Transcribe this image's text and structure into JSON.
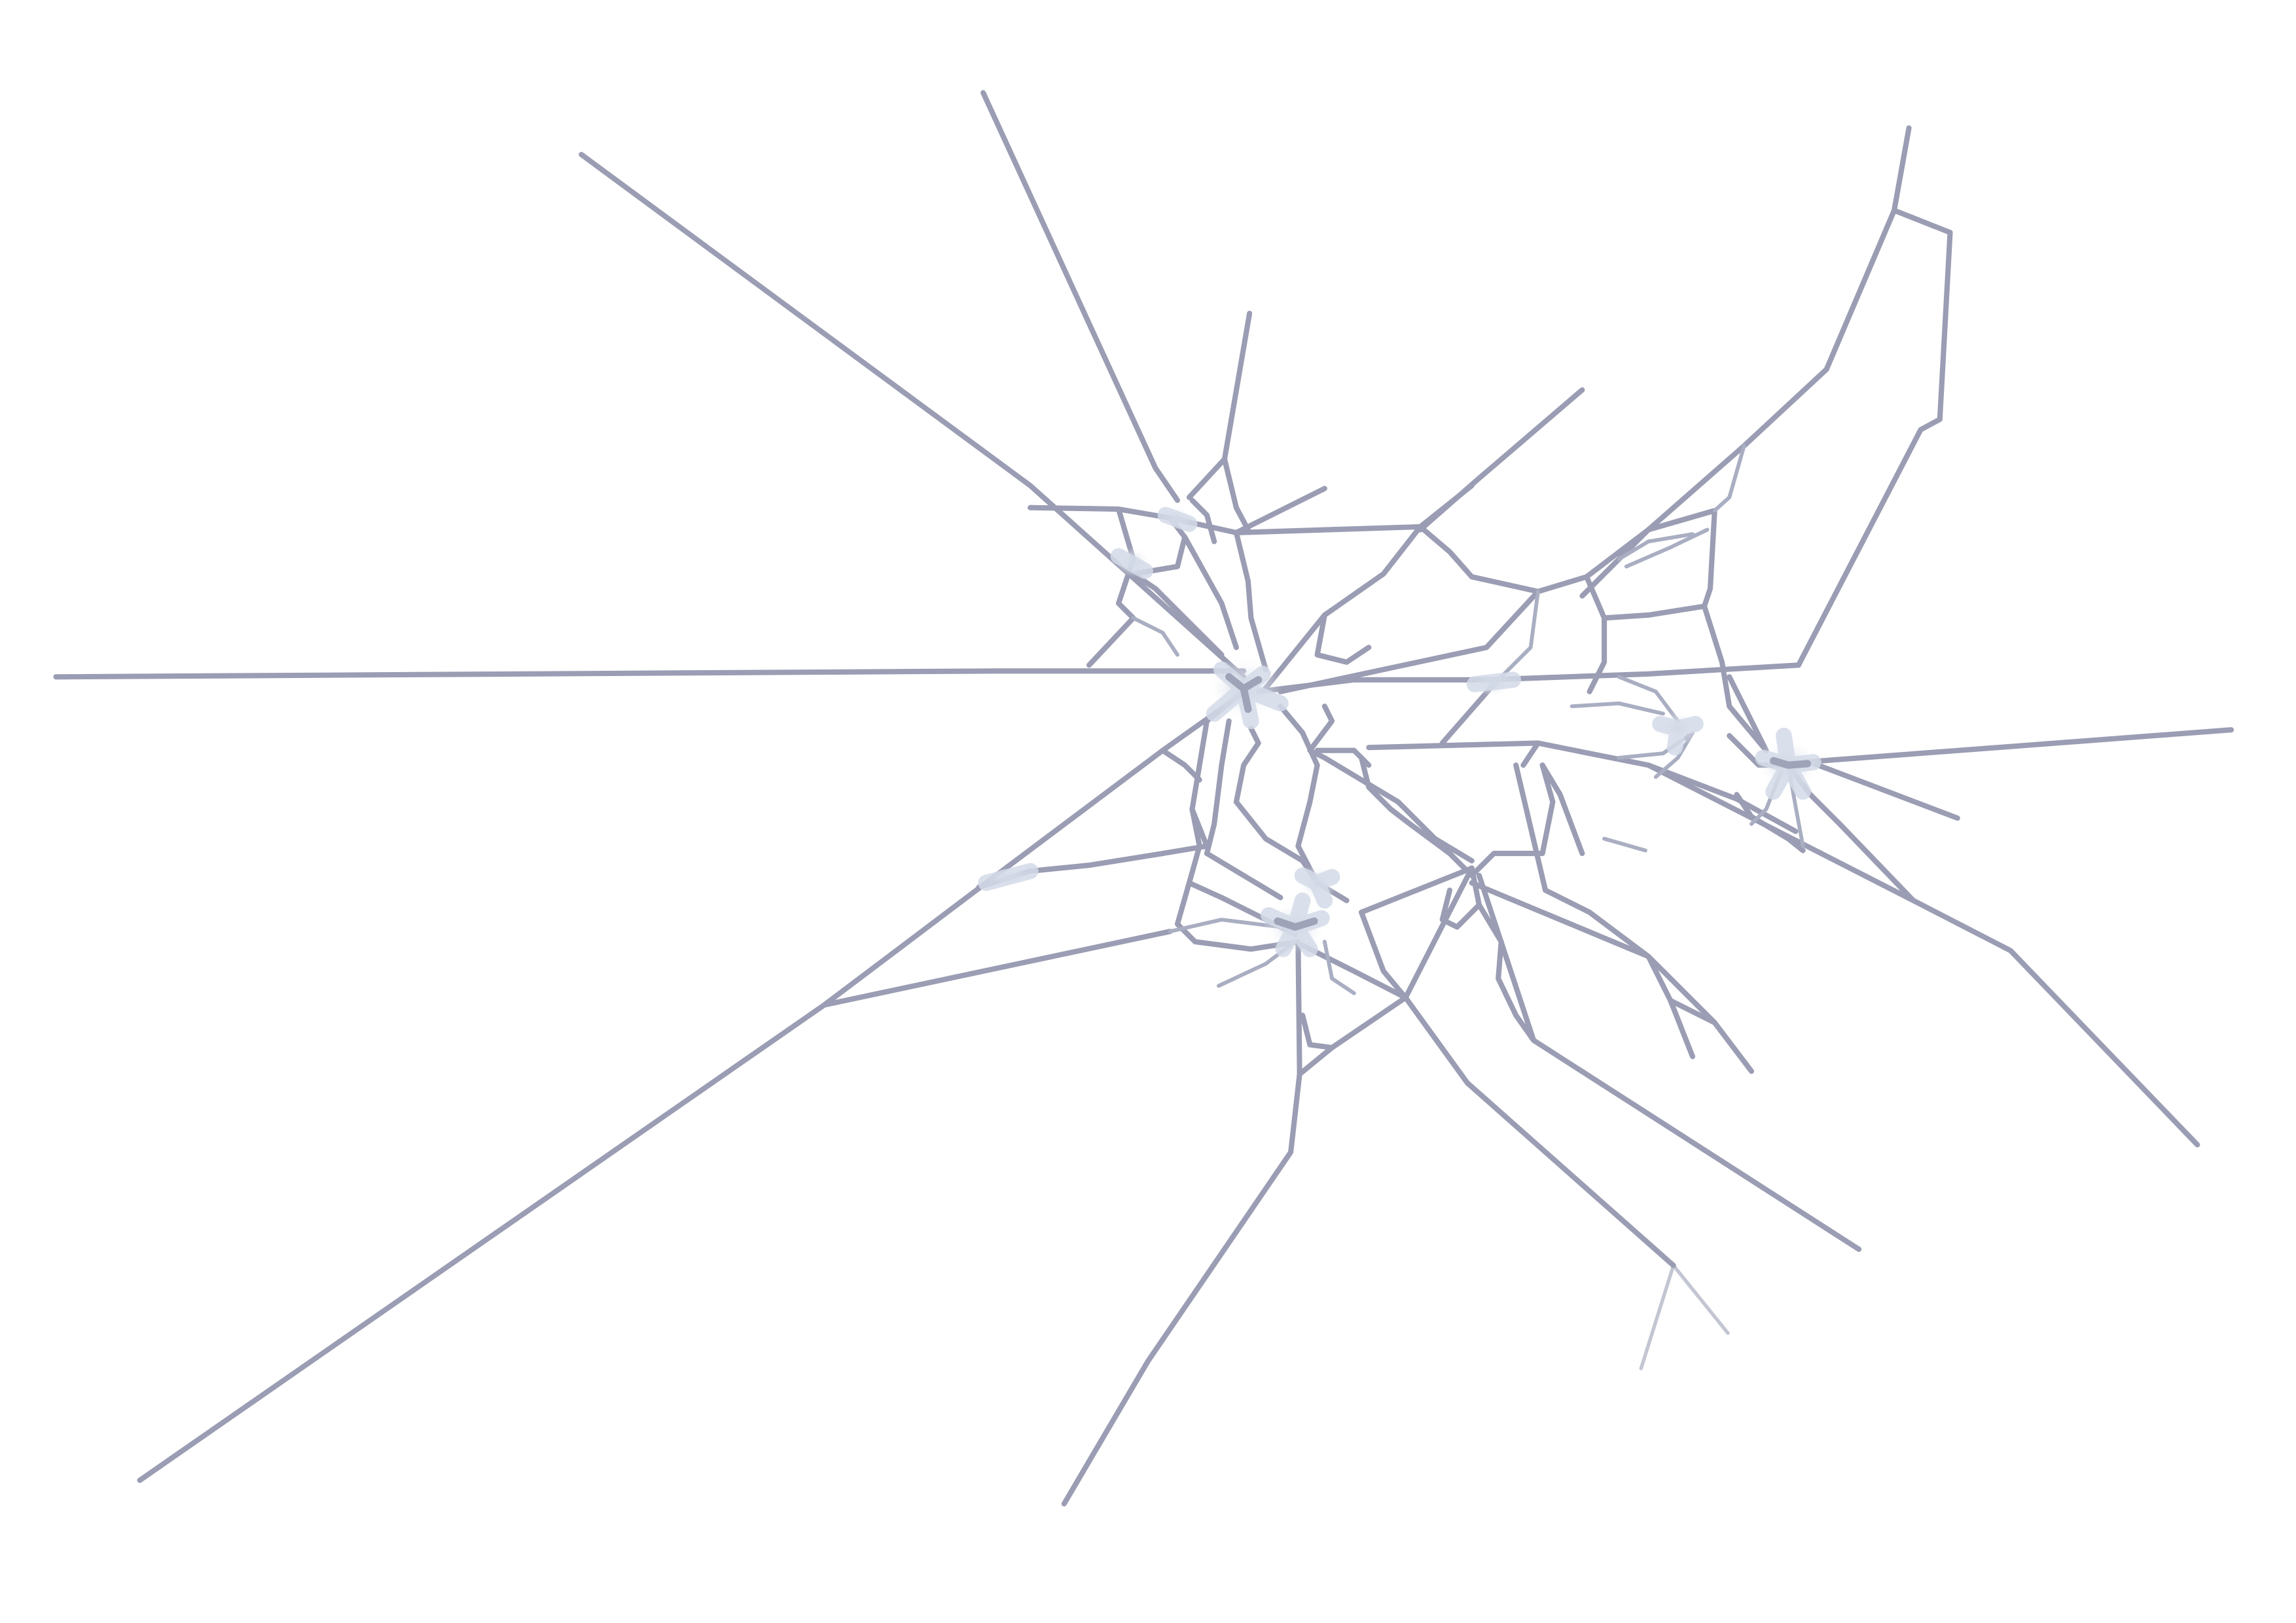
{
  "colors": {
    "background": "#ffffff",
    "crack_line": "#9a9db3",
    "crack_fine": "#a9aec2",
    "impact_glow": "#d4dbe8"
  },
  "impact_points": [
    {
      "name": "main-impact"
    },
    {
      "name": "right-impact"
    },
    {
      "name": "lower-impact"
    }
  ]
}
